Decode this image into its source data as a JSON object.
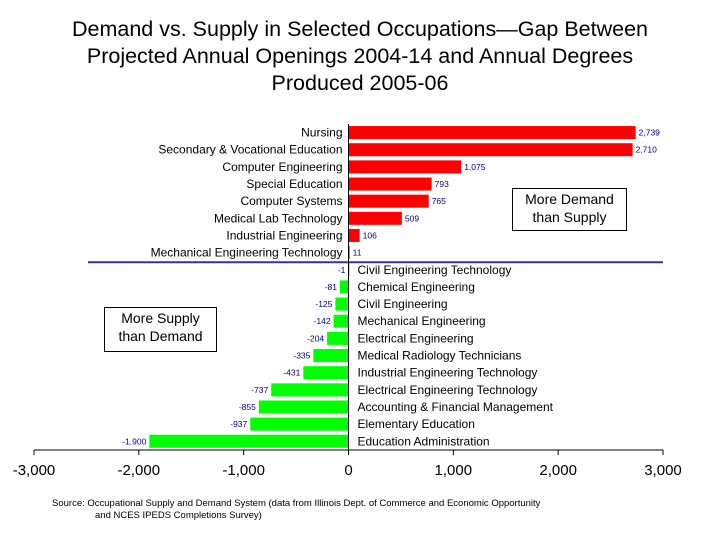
{
  "chart_data": {
    "type": "bar",
    "orientation": "horizontal",
    "title_lines": [
      "Demand vs. Supply in Selected Occupations—Gap Between",
      "Projected Annual Openings 2004-14 and Annual Degrees",
      "Produced 2005-06"
    ],
    "categories": [
      "Nursing",
      "Secondary & Vocational Education",
      "Computer Engineering",
      "Special Education",
      "Computer Systems",
      "Medical Lab Technology",
      "Industrial Engineering",
      "Mechanical Engineering Technology",
      "Civil Engineering Technology",
      "Chemical Engineering",
      "Civil Engineering",
      "Mechanical Engineering",
      "Electrical Engineering",
      "Medical Radiology Technicians",
      "Industrial Engineering Technology",
      "Electrical Engineering Technology",
      "Accounting & Financial Management",
      "Elementary Education",
      "Education Administration"
    ],
    "values": [
      2739,
      2710,
      1075,
      793,
      765,
      509,
      106,
      11,
      -1,
      -81,
      -125,
      -142,
      -204,
      -335,
      -431,
      -737,
      -855,
      -937,
      -1900
    ],
    "data_labels": [
      "2,739",
      "2,710",
      "1,075",
      "793",
      "765",
      "509",
      "106",
      "11",
      "-1",
      "-81",
      "-125",
      "-142",
      "-204",
      "-335",
      "-431",
      "-737",
      "-855",
      "-937",
      "-1,900"
    ],
    "xlim": [
      -3000,
      3000
    ],
    "xticks": [
      -3000,
      -2000,
      -1000,
      0,
      1000,
      2000,
      3000
    ],
    "xtick_labels": [
      "-3,000",
      "-2,000",
      "-1,000",
      "0",
      "1,000",
      "2,000",
      "3,000"
    ],
    "colors": {
      "positive": "#ff0000",
      "negative": "#00ff00",
      "divider": "#333399",
      "label": "#000080",
      "axis": "#000000"
    },
    "annotations": {
      "more_demand": [
        "More Demand",
        "than Supply"
      ],
      "more_supply": [
        "More Supply",
        "than Demand"
      ]
    },
    "source_lines": [
      "Source:  Occupational Supply and Demand System (data from Illinois Dept. of Commerce and Economic Opportunity",
      "and NCES IPEDS Completions Survey)"
    ]
  }
}
